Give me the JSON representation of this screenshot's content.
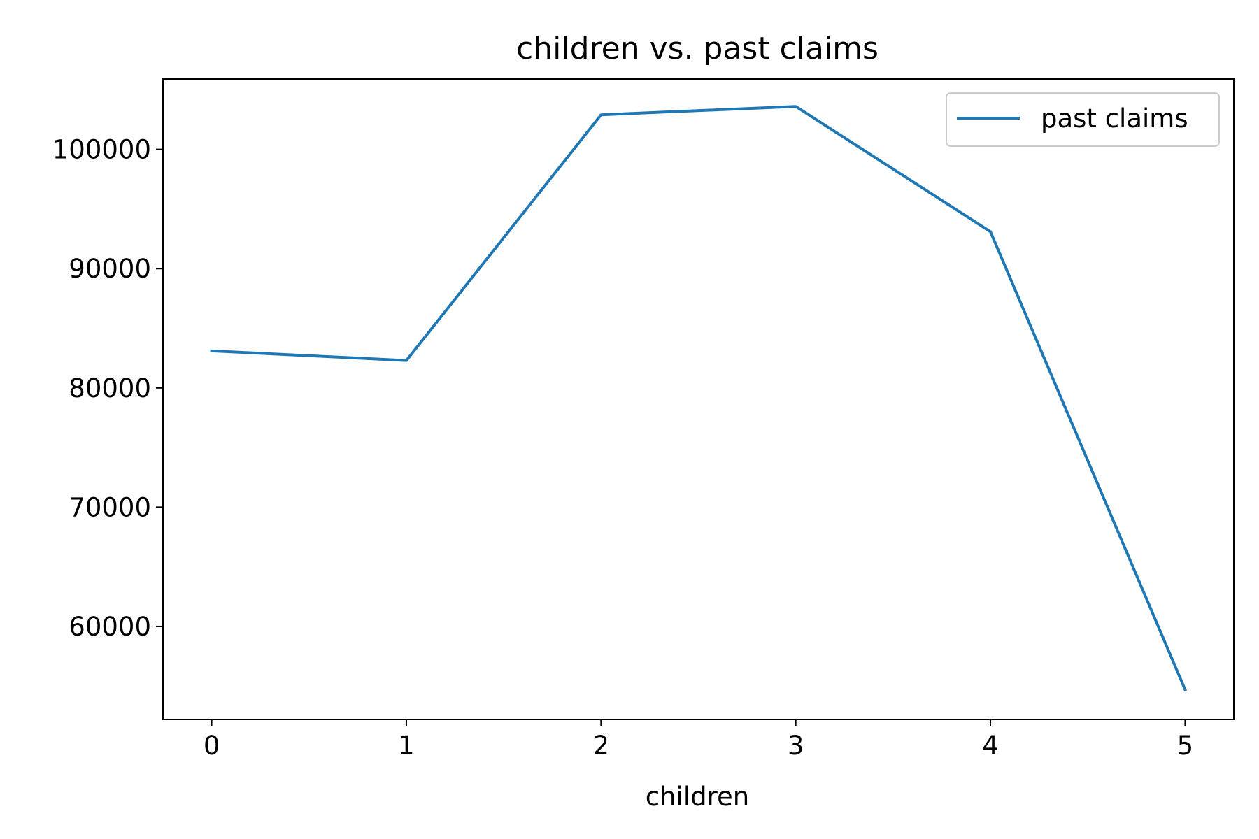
{
  "chart_data": {
    "type": "line",
    "title": "children vs. past claims",
    "xlabel": "children",
    "ylabel": "",
    "x": [
      0,
      1,
      2,
      3,
      4,
      5
    ],
    "series": [
      {
        "name": "past claims",
        "color": "#1f77b4",
        "values": [
          83100,
          82300,
          102900,
          103600,
          93100,
          54700
        ]
      }
    ],
    "xlim": [
      -0.25,
      5.25
    ],
    "ylim": [
      52200,
      105900
    ],
    "xticks": [
      0,
      1,
      2,
      3,
      4,
      5
    ],
    "xtick_labels": [
      "0",
      "1",
      "2",
      "3",
      "4",
      "5"
    ],
    "yticks": [
      60000,
      70000,
      80000,
      90000,
      100000
    ],
    "ytick_labels": [
      "60000",
      "70000",
      "80000",
      "90000",
      "100000"
    ],
    "grid": false,
    "legend_position": "top-right"
  }
}
